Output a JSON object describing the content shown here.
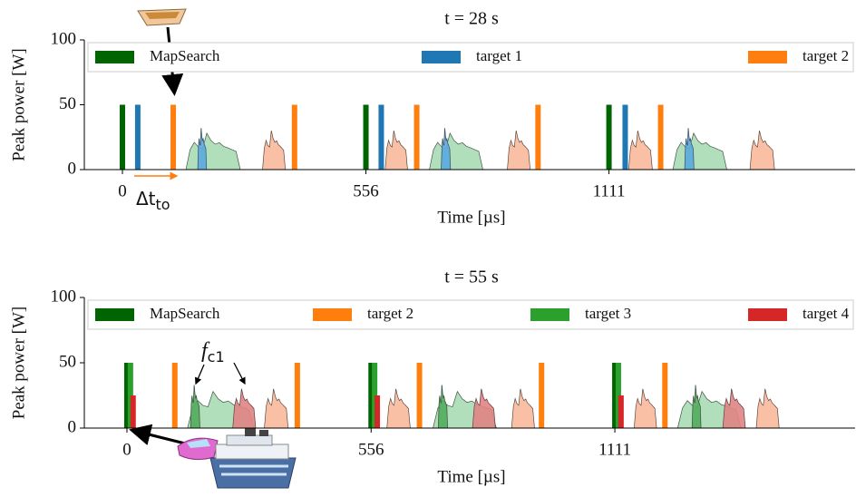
{
  "chart_data": [
    {
      "type": "pulse",
      "title": "t = 28 s",
      "x_label": "Time [µs]",
      "y_label": "Peak power [W]",
      "xlim": [
        -87,
        1673
      ],
      "xticks": [
        0,
        556,
        1111
      ],
      "ylim": [
        0,
        100
      ],
      "yticks": [
        0,
        50,
        100
      ],
      "series": [
        {
          "name": "MapSearch",
          "color": "#006400",
          "x": [
            0,
            556,
            1111
          ],
          "values": [
            50,
            50,
            50
          ]
        },
        {
          "name": "target 1",
          "color": "#1f77b4",
          "x": [
            35,
            591,
            1148
          ],
          "values": [
            50,
            50,
            50
          ]
        },
        {
          "name": "target 2",
          "color": "#ff7f0e",
          "x": [
            116,
            393,
            672,
            949,
            1229
          ],
          "values": [
            50,
            50,
            50,
            50,
            50
          ]
        }
      ],
      "echoes": [
        {
          "color": "#a9dcb4",
          "x": [
            145,
            269
          ],
          "values": [
            28
          ]
        },
        {
          "color": "#a9dcb4",
          "x": [
            701,
            823
          ],
          "values": [
            28
          ]
        },
        {
          "color": "#a9dcb4",
          "x": [
            1257,
            1380
          ],
          "values": [
            28
          ]
        },
        {
          "color": "#5aaae0",
          "x": [
            172,
            192
          ],
          "values": [
            32
          ]
        },
        {
          "color": "#5aaae0",
          "x": [
            728,
            749
          ],
          "values": [
            32
          ]
        },
        {
          "color": "#5aaae0",
          "x": [
            1284,
            1305
          ],
          "values": [
            32
          ]
        },
        {
          "color": "#f9b99c",
          "x": [
            320,
            372
          ],
          "values": [
            30
          ]
        },
        {
          "color": "#f9b99c",
          "x": [
            600,
            651
          ],
          "values": [
            30
          ]
        },
        {
          "color": "#f9b99c",
          "x": [
            879,
            931
          ],
          "values": [
            30
          ]
        },
        {
          "color": "#f9b99c",
          "x": [
            1156,
            1210
          ],
          "values": [
            30
          ]
        },
        {
          "color": "#f9b99c",
          "x": [
            1433,
            1489
          ],
          "values": [
            30
          ]
        }
      ],
      "annotation": {
        "text": "Δt",
        "subscript": "to"
      }
    },
    {
      "type": "pulse",
      "title": "t = 55 s",
      "x_label": "Time [µs]",
      "y_label": "Peak power [W]",
      "xlim": [
        -97,
        1658
      ],
      "xticks": [
        0,
        556,
        1111
      ],
      "ylim": [
        0,
        100
      ],
      "yticks": [
        0,
        50,
        100
      ],
      "series": [
        {
          "name": "MapSearch",
          "color": "#006400",
          "x": [
            0,
            556,
            1111
          ],
          "values": [
            50,
            50,
            50
          ]
        },
        {
          "name": "target 2",
          "color": "#ff7f0e",
          "x": [
            109,
            388,
            666,
            944,
            1225
          ],
          "values": [
            50,
            50,
            50,
            50,
            50
          ]
        },
        {
          "name": "target 3",
          "color": "#2ca02c",
          "x": [
            8,
            564,
            1119
          ],
          "values": [
            50,
            50,
            50
          ]
        },
        {
          "name": "target 4",
          "color": "#d62728",
          "x": [
            14,
            570,
            1125
          ],
          "values": [
            25,
            25,
            25
          ]
        }
      ],
      "echoes": [
        {
          "color": "#a9dcb4",
          "x": [
            138,
            289
          ],
          "values": [
            28
          ]
        },
        {
          "color": "#a9dcb4",
          "x": [
            697,
            841
          ],
          "values": [
            28
          ]
        },
        {
          "color": "#a9dcb4",
          "x": [
            1254,
            1398
          ],
          "values": [
            28
          ]
        },
        {
          "color": "#52ad5e",
          "x": [
            145,
            166
          ],
          "values": [
            33
          ]
        },
        {
          "color": "#52ad5e",
          "x": [
            709,
            730
          ],
          "values": [
            33
          ]
        },
        {
          "color": "#52ad5e",
          "x": [
            1287,
            1307
          ],
          "values": [
            33
          ]
        },
        {
          "color": "#e28484",
          "x": [
            241,
            293
          ],
          "values": [
            30
          ]
        },
        {
          "color": "#e28484",
          "x": [
            787,
            839
          ],
          "values": [
            30
          ]
        },
        {
          "color": "#e28484",
          "x": [
            1357,
            1408
          ],
          "values": [
            30
          ]
        },
        {
          "color": "#f9b99c",
          "x": [
            313,
            367
          ],
          "values": [
            30
          ]
        },
        {
          "color": "#f9b99c",
          "x": [
            592,
            645
          ],
          "values": [
            30
          ]
        },
        {
          "color": "#f9b99c",
          "x": [
            876,
            928
          ],
          "values": [
            30
          ]
        },
        {
          "color": "#f9b99c",
          "x": [
            1155,
            1206
          ],
          "values": [
            30
          ]
        },
        {
          "color": "#f9b99c",
          "x": [
            1433,
            1485
          ],
          "values": [
            30
          ]
        }
      ],
      "annotation": {
        "text": "f",
        "subscript": "c1"
      }
    }
  ]
}
